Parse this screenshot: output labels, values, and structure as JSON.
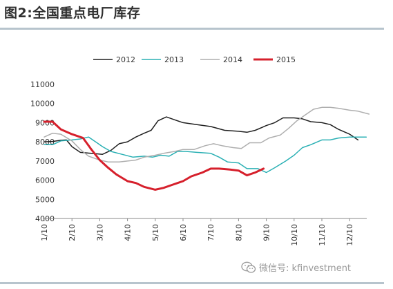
{
  "figure_title": "图2:全国重点电厂库存",
  "watermark": {
    "icon": "wechat-icon",
    "text": "微信号: kfinvestment"
  },
  "chart_data": {
    "type": "line",
    "title": "",
    "xlabel": "",
    "ylabel": "",
    "ylim": [
      4000,
      11000
    ],
    "yticks": [
      4000,
      5000,
      6000,
      7000,
      8000,
      9000,
      10000,
      11000
    ],
    "xlim": [
      1,
      13.3
    ],
    "xticks": [
      "1/10",
      "2/10",
      "3/10",
      "4/10",
      "5/10",
      "6/10",
      "7/10",
      "8/10",
      "9/10",
      "10/10",
      "11/10",
      "12/10"
    ],
    "grid": false,
    "legend_position": "top-center",
    "series": [
      {
        "name": "2012",
        "color": "#1f1f1f",
        "width": 1.5,
        "points": [
          [
            1,
            8000
          ],
          [
            1.3,
            8020
          ],
          [
            1.6,
            8080
          ],
          [
            1.8,
            8100
          ],
          [
            2,
            7750
          ],
          [
            2.3,
            7450
          ],
          [
            2.7,
            7400
          ],
          [
            3.1,
            7350
          ],
          [
            3.4,
            7550
          ],
          [
            3.7,
            7900
          ],
          [
            4,
            8000
          ],
          [
            4.3,
            8250
          ],
          [
            4.6,
            8450
          ],
          [
            4.85,
            8600
          ],
          [
            5.1,
            9100
          ],
          [
            5.4,
            9300
          ],
          [
            5.7,
            9150
          ],
          [
            6,
            9000
          ],
          [
            6.5,
            8900
          ],
          [
            7,
            8800
          ],
          [
            7.5,
            8600
          ],
          [
            8,
            8550
          ],
          [
            8.3,
            8500
          ],
          [
            8.6,
            8600
          ],
          [
            9,
            8850
          ],
          [
            9.3,
            9000
          ],
          [
            9.6,
            9250
          ],
          [
            10,
            9250
          ],
          [
            10.3,
            9200
          ],
          [
            10.6,
            9050
          ],
          [
            11,
            9000
          ],
          [
            11.3,
            8900
          ],
          [
            11.6,
            8650
          ],
          [
            12,
            8400
          ],
          [
            12.3,
            8100
          ]
        ]
      },
      {
        "name": "2013",
        "color": "#2ab0b4",
        "width": 1.5,
        "points": [
          [
            1,
            7850
          ],
          [
            1.3,
            7850
          ],
          [
            1.6,
            8050
          ],
          [
            2,
            8100
          ],
          [
            2.3,
            8150
          ],
          [
            2.6,
            8250
          ],
          [
            2.9,
            7950
          ],
          [
            3.1,
            7750
          ],
          [
            3.4,
            7500
          ],
          [
            3.8,
            7350
          ],
          [
            4.2,
            7200
          ],
          [
            4.6,
            7250
          ],
          [
            4.9,
            7200
          ],
          [
            5.2,
            7300
          ],
          [
            5.5,
            7250
          ],
          [
            5.8,
            7500
          ],
          [
            6.1,
            7500
          ],
          [
            6.5,
            7450
          ],
          [
            7,
            7400
          ],
          [
            7.3,
            7200
          ],
          [
            7.6,
            6950
          ],
          [
            8,
            6900
          ],
          [
            8.3,
            6600
          ],
          [
            8.7,
            6600
          ],
          [
            9,
            6400
          ],
          [
            9.3,
            6650
          ],
          [
            9.7,
            7000
          ],
          [
            10,
            7300
          ],
          [
            10.3,
            7700
          ],
          [
            10.6,
            7850
          ],
          [
            11,
            8100
          ],
          [
            11.3,
            8100
          ],
          [
            11.6,
            8200
          ],
          [
            12,
            8250
          ],
          [
            12.3,
            8250
          ],
          [
            12.6,
            8250
          ]
        ]
      },
      {
        "name": "2014",
        "color": "#aeaeae",
        "width": 1.5,
        "points": [
          [
            1,
            8250
          ],
          [
            1.3,
            8450
          ],
          [
            1.6,
            8400
          ],
          [
            2,
            8050
          ],
          [
            2.3,
            7600
          ],
          [
            2.6,
            7250
          ],
          [
            3,
            7050
          ],
          [
            3.3,
            6950
          ],
          [
            3.7,
            6950
          ],
          [
            4,
            7000
          ],
          [
            4.3,
            7050
          ],
          [
            4.6,
            7200
          ],
          [
            5,
            7300
          ],
          [
            5.3,
            7400
          ],
          [
            5.7,
            7500
          ],
          [
            6,
            7600
          ],
          [
            6.4,
            7600
          ],
          [
            6.8,
            7800
          ],
          [
            7.1,
            7900
          ],
          [
            7.4,
            7800
          ],
          [
            7.8,
            7700
          ],
          [
            8.1,
            7650
          ],
          [
            8.4,
            7950
          ],
          [
            8.8,
            7950
          ],
          [
            9.1,
            8200
          ],
          [
            9.5,
            8350
          ],
          [
            9.8,
            8700
          ],
          [
            10.1,
            9100
          ],
          [
            10.4,
            9400
          ],
          [
            10.7,
            9700
          ],
          [
            11,
            9800
          ],
          [
            11.3,
            9800
          ],
          [
            11.6,
            9750
          ],
          [
            12,
            9650
          ],
          [
            12.3,
            9600
          ],
          [
            12.7,
            9450
          ]
        ]
      },
      {
        "name": "2015",
        "color": "#d6202c",
        "width": 3,
        "points": [
          [
            1,
            9050
          ],
          [
            1.3,
            9050
          ],
          [
            1.6,
            8650
          ],
          [
            2,
            8400
          ],
          [
            2.4,
            8200
          ],
          [
            2.7,
            7600
          ],
          [
            3,
            7050
          ],
          [
            3.3,
            6650
          ],
          [
            3.6,
            6300
          ],
          [
            4,
            5950
          ],
          [
            4.3,
            5850
          ],
          [
            4.6,
            5650
          ],
          [
            5,
            5500
          ],
          [
            5.3,
            5600
          ],
          [
            5.6,
            5750
          ],
          [
            6,
            5950
          ],
          [
            6.3,
            6200
          ],
          [
            6.7,
            6400
          ],
          [
            7,
            6600
          ],
          [
            7.3,
            6600
          ],
          [
            7.7,
            6550
          ],
          [
            8,
            6500
          ],
          [
            8.3,
            6250
          ],
          [
            8.6,
            6400
          ],
          [
            8.9,
            6600
          ]
        ]
      }
    ]
  }
}
